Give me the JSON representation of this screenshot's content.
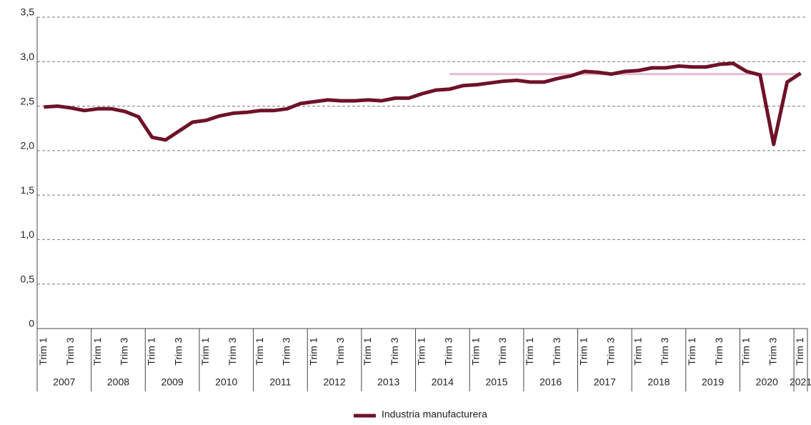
{
  "chart_data": {
    "type": "line",
    "categories": [
      "Trim 1",
      null,
      "Trim 3",
      null,
      "Trim 1",
      null,
      "Trim 3",
      null,
      "Trim 1",
      null,
      "Trim 3",
      null,
      "Trim 1",
      null,
      "Trim 3",
      null,
      "Trim 1",
      null,
      "Trim 3",
      null,
      "Trim 1",
      null,
      "Trim 3",
      null,
      "Trim 1",
      null,
      "Trim 3",
      null,
      "Trim 1",
      null,
      "Trim 3",
      null,
      "Trim 1",
      null,
      "Trim 3",
      null,
      "Trim 1",
      null,
      "Trim 3",
      null,
      "Trim 1",
      null,
      "Trim 3",
      null,
      "Trim 1",
      null,
      "Trim 3",
      null,
      "Trim 1",
      null,
      "Trim 3",
      null,
      "Trim 1",
      null,
      "Trim 3",
      null,
      "Trim 1"
    ],
    "years": [
      "2007",
      "2008",
      "2009",
      "2010",
      "2011",
      "2012",
      "2013",
      "2014",
      "2015",
      "2016",
      "2017",
      "2018",
      "2019",
      "2020",
      "2021"
    ],
    "series": [
      {
        "name": "Industria manufacturera",
        "color": "#6e1228",
        "values": [
          2.49,
          2.5,
          2.48,
          2.45,
          2.47,
          2.47,
          2.44,
          2.38,
          2.15,
          2.12,
          2.22,
          2.32,
          2.34,
          2.39,
          2.42,
          2.43,
          2.45,
          2.45,
          2.47,
          2.53,
          2.55,
          2.57,
          2.56,
          2.56,
          2.57,
          2.56,
          2.59,
          2.59,
          2.64,
          2.68,
          2.69,
          2.73,
          2.74,
          2.76,
          2.78,
          2.79,
          2.77,
          2.77,
          2.81,
          2.84,
          2.89,
          2.88,
          2.86,
          2.89,
          2.9,
          2.93,
          2.93,
          2.95,
          2.94,
          2.94,
          2.97,
          2.98,
          2.89,
          2.85,
          2.07,
          2.77,
          2.87
        ]
      },
      {
        "color": "#e6bcd2",
        "values": [
          null,
          null,
          null,
          null,
          null,
          null,
          null,
          null,
          null,
          null,
          null,
          null,
          null,
          null,
          null,
          null,
          null,
          null,
          null,
          null,
          null,
          null,
          null,
          null,
          null,
          null,
          null,
          null,
          null,
          null,
          2.86,
          2.86,
          2.86,
          2.86,
          2.86,
          2.86,
          2.86,
          2.86,
          2.86,
          2.86,
          2.86,
          2.86,
          2.86,
          2.86,
          2.86,
          2.86,
          2.86,
          2.86,
          2.86,
          2.86,
          2.86,
          2.86,
          2.86,
          2.86,
          2.86,
          2.86,
          2.86
        ]
      }
    ],
    "ylim": [
      0,
      3.5
    ],
    "yticks": [
      0,
      {
        "value": 0.5,
        "label": "0,5"
      },
      {
        "value": 1,
        "label": "1,0"
      },
      {
        "value": 1.5,
        "label": "1,5"
      },
      {
        "value": 2,
        "label": "2,0"
      },
      {
        "value": 2.5,
        "label": "2,5"
      },
      {
        "value": 3,
        "label": "3,0"
      },
      {
        "value": 3.5,
        "label": "3,5"
      }
    ],
    "grid": true
  }
}
